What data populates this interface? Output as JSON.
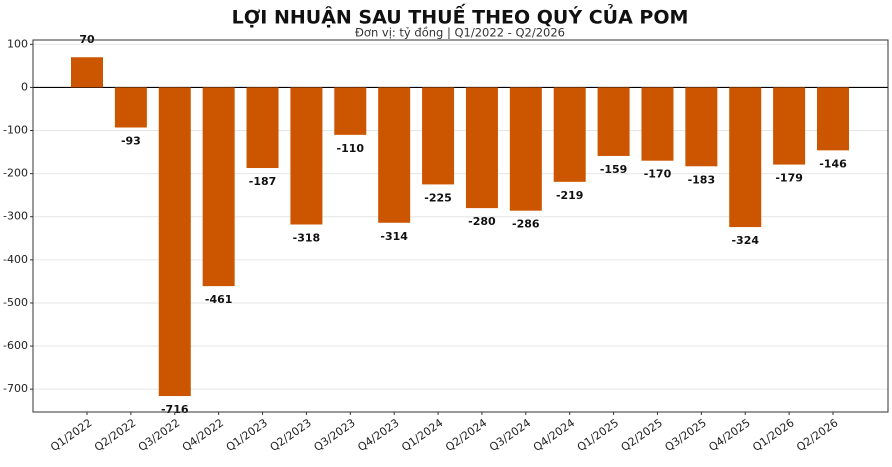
{
  "chart_data": {
    "type": "bar",
    "title": "LỢI NHUẬN SAU THUẾ THEO QUÝ CỦA POM",
    "subtitle": "Đơn vị: tỷ đồng | Q1/2022 - Q2/2026",
    "categories": [
      "Q1/2022",
      "Q2/2022",
      "Q3/2022",
      "Q4/2022",
      "Q1/2023",
      "Q2/2023",
      "Q3/2023",
      "Q4/2023",
      "Q1/2024",
      "Q2/2024",
      "Q3/2024",
      "Q4/2024",
      "Q1/2025",
      "Q2/2025",
      "Q3/2025",
      "Q4/2025",
      "Q1/2026",
      "Q2/2026"
    ],
    "values": [
      70,
      -93,
      -716,
      -461,
      -187,
      -318,
      -110,
      -314,
      -225,
      -280,
      -286,
      -219,
      -159,
      -170,
      -183,
      -324,
      -179,
      -146
    ],
    "color": "#cc5500",
    "ylim": [
      -753,
      110
    ],
    "yticks": [
      100,
      0,
      -100,
      -200,
      -300,
      -400,
      -500,
      -600,
      -700
    ],
    "grid": true
  }
}
